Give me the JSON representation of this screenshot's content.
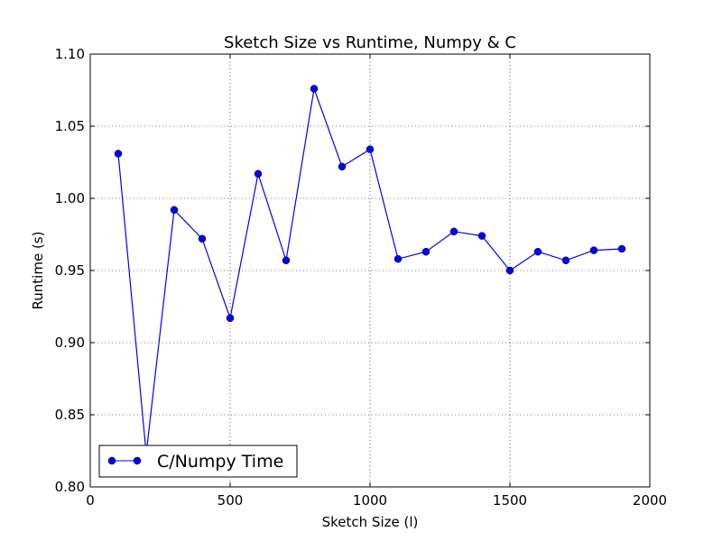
{
  "chart_data": {
    "type": "line",
    "title": "Sketch Size vs Runtime, Numpy & C",
    "xlabel": "Sketch Size (l)",
    "ylabel": "Runtime (s)",
    "xlim": [
      0,
      2000
    ],
    "ylim": [
      0.8,
      1.1
    ],
    "grid": true,
    "grid_style": "dotted",
    "legend_placement": "lower-left",
    "x_ticks": [
      0,
      500,
      1000,
      1500,
      2000
    ],
    "x_tick_labels": [
      "0",
      "500",
      "1000",
      "1500",
      "2000"
    ],
    "y_ticks": [
      0.8,
      0.85,
      0.9,
      0.95,
      1.0,
      1.05,
      1.1
    ],
    "y_tick_labels": [
      "0.80",
      "0.85",
      "0.90",
      "0.95",
      "1.00",
      "1.05",
      "1.10"
    ],
    "series": [
      {
        "name": "C/Numpy Time",
        "color": "#0000ff",
        "marker": "circle",
        "x": [
          100,
          200,
          300,
          400,
          500,
          600,
          700,
          800,
          900,
          1000,
          1100,
          1200,
          1300,
          1400,
          1500,
          1600,
          1700,
          1800,
          1900
        ],
        "y": [
          1.031,
          0.823,
          0.992,
          0.972,
          0.917,
          1.017,
          0.957,
          1.076,
          1.022,
          1.034,
          0.958,
          0.963,
          0.977,
          0.974,
          0.95,
          0.963,
          0.957,
          0.964,
          0.965
        ]
      }
    ]
  }
}
